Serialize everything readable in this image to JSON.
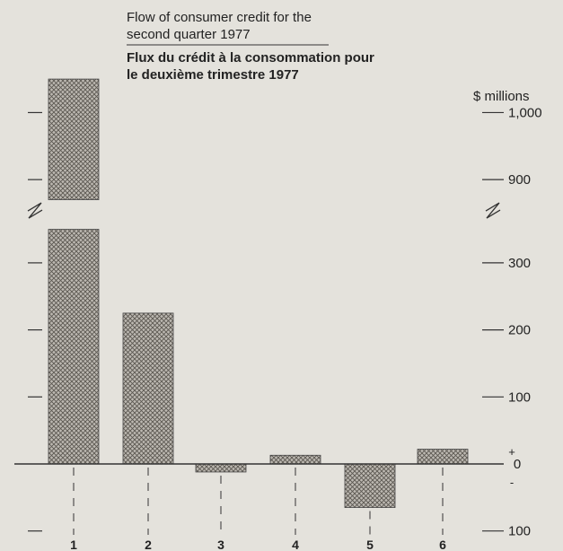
{
  "title": {
    "en": [
      "Flow of consumer credit for the",
      "second quarter 1977"
    ],
    "fr": [
      "Flux du crédit à la consommation pour",
      "le deuxième trimestre 1977"
    ]
  },
  "colors": {
    "bar": "#9a9690",
    "bar_stroke": "#444444",
    "axis": "#333333",
    "background": "#e4e2dc"
  },
  "chart_data": {
    "type": "bar",
    "title": "Flow of consumer credit for the second quarter 1977 / Flux du crédit à la consommation pour le deuxième trimestre 1977",
    "categories": [
      "1",
      "2",
      "3",
      "4",
      "5",
      "6"
    ],
    "values": [
      1050,
      225,
      -12,
      13,
      -65,
      22
    ],
    "xlabel": "",
    "ylabel": "$ millions",
    "ylim": [
      -100,
      1000
    ],
    "axis_break": [
      350,
      870
    ],
    "y_ticks": [
      {
        "label": "1,000",
        "value": 1000
      },
      {
        "label": "900",
        "value": 900
      },
      {
        "label": "300",
        "value": 300
      },
      {
        "label": "200",
        "value": 200
      },
      {
        "label": "100",
        "value": 100
      },
      {
        "label": "0",
        "value": 0
      },
      {
        "label": "100",
        "value": -100
      }
    ],
    "sign_labels": {
      "plus": "+",
      "minus": "-"
    },
    "grid": false,
    "legend": "none"
  }
}
